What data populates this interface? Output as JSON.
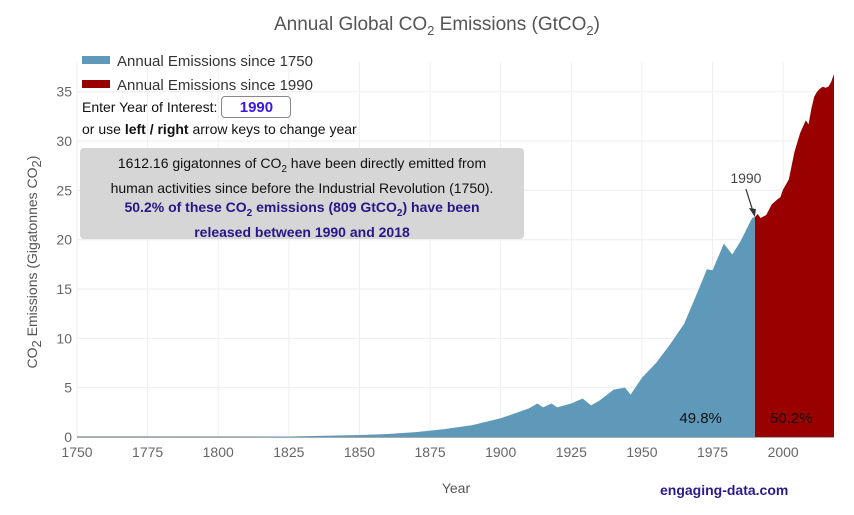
{
  "chart_data": {
    "type": "area",
    "title": "Annual Global CO",
    "title_sub": "2",
    "title_rest": " Emissions (GtCO",
    "title_sub2": "2",
    "title_end": ")",
    "xlabel": "Year",
    "ylabel_pre": "CO",
    "ylabel_sub": "2",
    "ylabel_mid": " Emissions (Gigatonnes CO",
    "ylabel_sub2": "2",
    "ylabel_end": ")",
    "xlim": [
      1750,
      2018
    ],
    "ylim": [
      0,
      37
    ],
    "x_ticks": [
      1750,
      1775,
      1800,
      1825,
      1850,
      1875,
      1900,
      1925,
      1950,
      1975,
      2000
    ],
    "y_ticks": [
      0,
      5,
      10,
      15,
      20,
      25,
      30,
      35
    ],
    "grid": true,
    "legend_placement": "top-left",
    "series": [
      {
        "name": "Annual Emissions since 1750",
        "color": "#5f99ba",
        "x": [
          1750,
          1800,
          1825,
          1850,
          1860,
          1870,
          1880,
          1890,
          1900,
          1905,
          1910,
          1913,
          1915,
          1918,
          1920,
          1925,
          1929,
          1932,
          1935,
          1940,
          1944,
          1946,
          1950,
          1955,
          1960,
          1965,
          1970,
          1973,
          1975,
          1979,
          1982,
          1985,
          1989,
          1990
        ],
        "values": [
          0.01,
          0.03,
          0.05,
          0.2,
          0.3,
          0.5,
          0.8,
          1.2,
          1.9,
          2.4,
          2.9,
          3.4,
          3.0,
          3.4,
          3.0,
          3.4,
          3.9,
          3.2,
          3.7,
          4.8,
          5.0,
          4.3,
          6.0,
          7.5,
          9.4,
          11.5,
          14.9,
          17.0,
          16.9,
          19.6,
          18.5,
          19.9,
          22.2,
          22.3
        ]
      },
      {
        "name": "Annual Emissions since 1990",
        "color": "#990000",
        "x": [
          1990,
          1991,
          1992,
          1994,
          1996,
          1998,
          1999,
          2000,
          2002,
          2003,
          2004,
          2006,
          2008,
          2009,
          2010,
          2011,
          2012,
          2013,
          2014,
          2015,
          2016,
          2017,
          2018
        ],
        "values": [
          22.3,
          22.6,
          22.2,
          22.5,
          23.6,
          24.1,
          24.3,
          25.1,
          26.1,
          27.5,
          28.9,
          30.8,
          32.1,
          31.7,
          33.3,
          34.5,
          35.0,
          35.3,
          35.5,
          35.4,
          35.5,
          36.0,
          36.8
        ]
      }
    ]
  },
  "legend": {
    "items": [
      {
        "label": "Annual Emissions since 1750",
        "color": "#5f99ba"
      },
      {
        "label": "Annual Emissions since 1990",
        "color": "#990000"
      }
    ]
  },
  "controls": {
    "prompt": "Enter Year of Interest:",
    "year_value": "1990",
    "hint_pre": "or use ",
    "hint_bold": "left / right",
    "hint_post": " arrow keys to change year"
  },
  "info": {
    "line1_pre": "1612.16 gigatonnes of CO",
    "line1_sub": "2",
    "line1_post": " have been directly emitted from",
    "line2": "human activities since before the Industrial Revolution (1750).",
    "line3_pre": "50.2% of these CO",
    "line3_sub": "2",
    "line3_mid": " emissions (809 GtCO",
    "line3_sub2": "2",
    "line3_post": ") have been",
    "line4": "released between 1990 and 2018"
  },
  "annotations": {
    "marker_year": "1990",
    "pct_before": "49.8%",
    "pct_after": "50.2%"
  },
  "brand": "engaging-data.com"
}
